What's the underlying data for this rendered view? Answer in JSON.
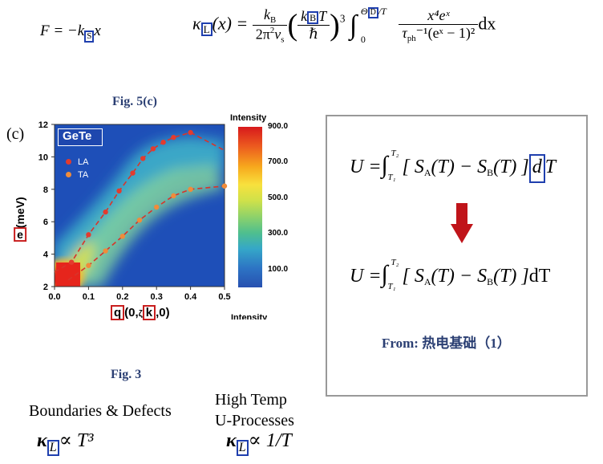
{
  "formula_f": {
    "lhs": "F = −k",
    "sub": "S",
    "rhs": "x"
  },
  "formula_kappa": {
    "kappa": "κ",
    "kappa_sub": "L",
    "arg": "(x) =",
    "frac1_num": "k",
    "frac1_num_sub": "B",
    "frac1_den": "2π",
    "frac1_den_sup": "2",
    "frac1_den_tail": "v",
    "frac1_den_sub": "s",
    "frac2_num_k": "k",
    "frac2_num_sub": "B",
    "frac2_num_T": "T",
    "frac2_den": "ℏ",
    "power": "3",
    "integral": "∫",
    "int_upper": "Θ",
    "int_upper_sub": "D",
    "int_upper_tail": "/T",
    "int_lower": "0",
    "frac3_num": "x⁴eˣ",
    "frac3_den": "τ",
    "frac3_den_sub": "ph",
    "frac3_den_tail": "⁻¹(eˣ − 1)²",
    "dx": "dx"
  },
  "fig5c_caption": "Fig. 5(c)",
  "panel_label": "(c)",
  "plot": {
    "title": "GeTe",
    "legend": [
      {
        "name": "LA",
        "color": "#e33b2e"
      },
      {
        "name": "TA",
        "color": "#f08c3a"
      }
    ],
    "y_axis_label_boxed": "e",
    "y_axis_label_rest": "(meV)",
    "y_ticks": [
      "12",
      "10",
      "8",
      "6",
      "4",
      "2"
    ],
    "x_ticks": [
      "0.0",
      "0.1",
      "0.2",
      "0.3",
      "0.4",
      "0.5"
    ],
    "x_axis_label_q": "q",
    "x_axis_label_mid": "(0,",
    "x_axis_label_zeta": "ζ",
    "x_axis_label_k": "k",
    "x_axis_label_end": ",0)",
    "colorbar_title": "Intensity",
    "colorbar_ticks": [
      "900.0",
      "700.0",
      "500.0",
      "300.0",
      "100.0"
    ],
    "colorbar_bottom_label": "Intensity"
  },
  "chart_data": {
    "type": "scatter",
    "title": "GeTe",
    "xlabel": "q(0,ζk,0)",
    "ylabel": "e(meV)",
    "xlim": [
      0.0,
      0.5
    ],
    "ylim": [
      2,
      12
    ],
    "series": [
      {
        "name": "LA",
        "x": [
          0.05,
          0.1,
          0.15,
          0.19,
          0.23,
          0.26,
          0.29,
          0.32,
          0.35,
          0.4
        ],
        "y": [
          3.5,
          5.2,
          6.6,
          7.9,
          9.0,
          9.9,
          10.5,
          10.9,
          11.2,
          11.5
        ]
      },
      {
        "name": "TA",
        "x": [
          0.1,
          0.15,
          0.2,
          0.25,
          0.3,
          0.35,
          0.4,
          0.5
        ],
        "y": [
          3.3,
          4.2,
          5.1,
          6.1,
          6.9,
          7.6,
          8.0,
          8.2
        ]
      }
    ],
    "colorbar": {
      "label": "Intensity",
      "min": 0,
      "max": 900
    }
  },
  "fig3_caption": "Fig. 3",
  "regimes": {
    "low": {
      "label": "Boundaries & Defects",
      "kappa": "κ",
      "kappa_sub": "L",
      "rel": "∝ T³"
    },
    "high": {
      "label_line1": "High Temp",
      "label_line2": "U-Processes",
      "kappa": "κ",
      "kappa_sub": "L",
      "rel": "∝ 1/T"
    }
  },
  "right_box": {
    "formula_top": {
      "lhs": "U =",
      "int": "∫",
      "upper": "T₂",
      "lower": "T₁",
      "body": "[ S",
      "sa_sub": "A",
      "mid": "(T) − S",
      "sb_sub": "B",
      "end": "(T) ]",
      "d_boxed": "d",
      "t": "T"
    },
    "formula_bottom": {
      "lhs": "U =",
      "int": "∫",
      "upper": "T₂",
      "lower": "T₁",
      "body": "[ S",
      "sa_sub": "A",
      "mid": "(T) − S",
      "sb_sub": "B",
      "end": "(T) ]",
      "dT": "dT"
    },
    "arrow_color": "#c0141a",
    "source": "From: 热电基础（1）"
  }
}
